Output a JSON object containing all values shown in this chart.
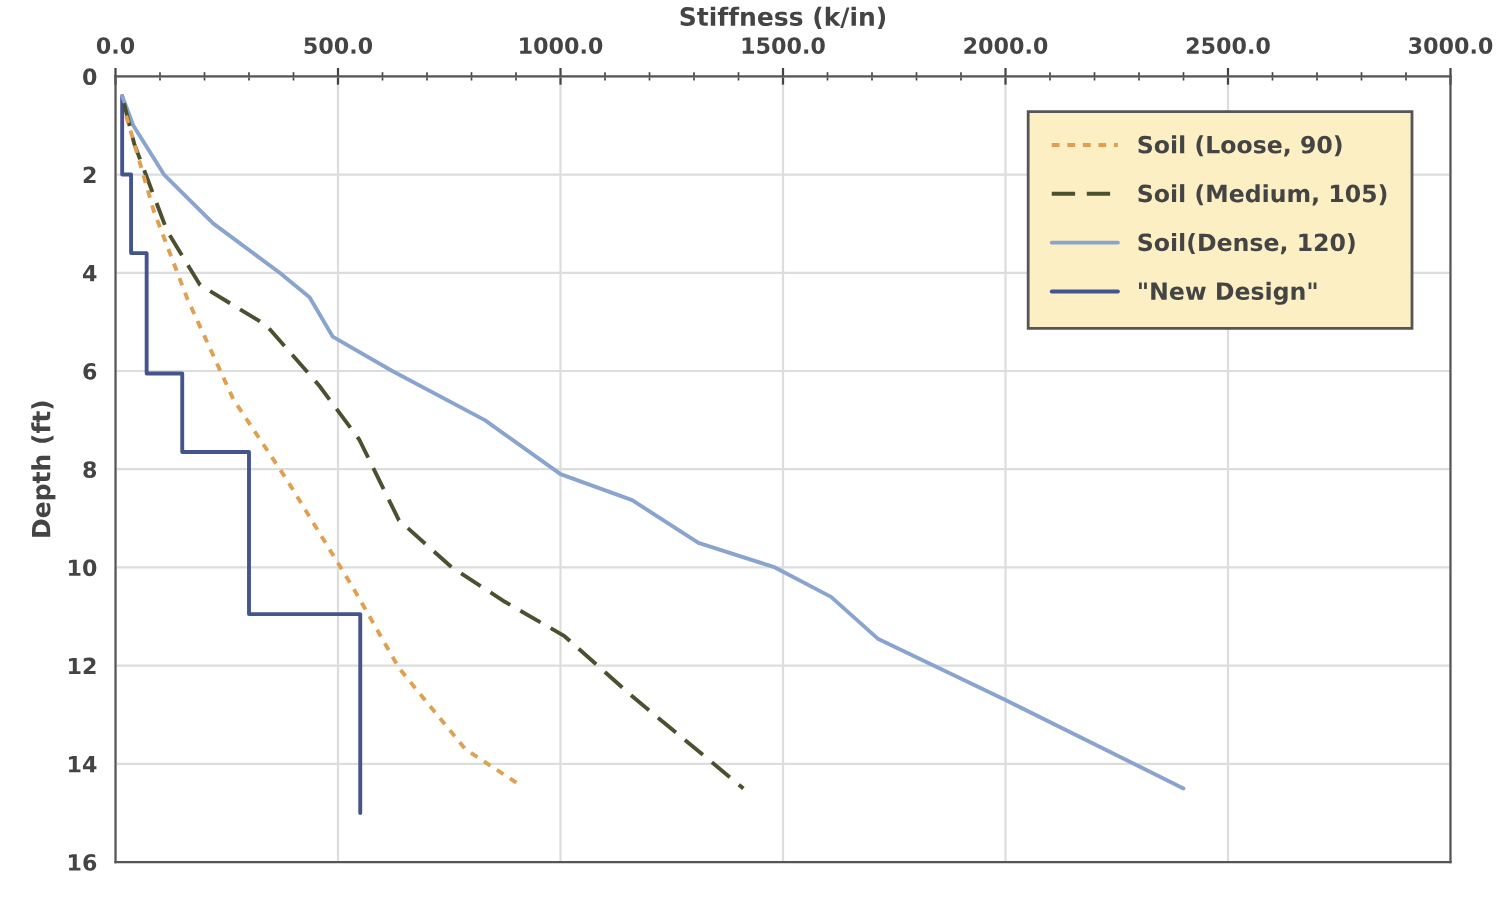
{
  "chart_data": {
    "type": "line",
    "xlabel": "Stiffness (k/in)",
    "ylabel": "Depth (ft)",
    "xlim": [
      0,
      3000
    ],
    "xticks": [
      {
        "value": 0,
        "label": "0.0"
      },
      {
        "value": 500,
        "label": "500.0"
      },
      {
        "value": 1000,
        "label": "1000.0"
      },
      {
        "value": 1500,
        "label": "1500.0"
      },
      {
        "value": 2000,
        "label": "2000.0"
      },
      {
        "value": 2500,
        "label": "2500.0"
      },
      {
        "value": 3000,
        "label": "3000.0"
      }
    ],
    "ylim": [
      16,
      0
    ],
    "yticks": [
      0,
      2,
      4,
      6,
      8,
      10,
      12,
      14,
      16
    ],
    "grid": true,
    "legend": "top right",
    "series": [
      {
        "name": "Soil (Loose, 90)",
        "color": "#e0a050",
        "line_style": "dotted",
        "x": [
          24,
          86,
          161,
          265,
          384,
          533,
          637,
          786,
          912
        ],
        "values": [
          0.8,
          2.74,
          4.52,
          6.58,
          8.2,
          10.4,
          12.05,
          13.7,
          14.45
        ]
      },
      {
        "name": "Soil (Medium, 105)",
        "color": "#4d5030",
        "line_style": "dashed",
        "x": [
          19,
          42,
          116,
          190,
          339,
          458,
          548,
          637,
          756,
          875,
          1009,
          1158,
          1411
        ],
        "values": [
          0.55,
          1.37,
          3.15,
          4.25,
          5.07,
          6.3,
          7.4,
          9.04,
          10,
          10.7,
          11.4,
          12.6,
          14.5
        ]
      },
      {
        "name": "Soil(Dense, 120)",
        "color": "#8aa4d0",
        "line_style": "solid",
        "x": [
          15,
          40,
          109,
          220,
          369,
          436,
          488,
          622,
          830,
          1000,
          1161,
          1310,
          1482,
          1608,
          1713,
          2000,
          2400
        ],
        "values": [
          0.4,
          1,
          2,
          3,
          4,
          4.5,
          5.3,
          6,
          7,
          8.1,
          8.63,
          9.5,
          10,
          10.6,
          11.45,
          12.7,
          14.5
        ]
      },
      {
        "name": "\"New Design\"",
        "color": "#44548f",
        "line_style": "solid",
        "x": [
          15,
          15,
          35,
          35,
          70,
          70,
          150,
          150,
          300,
          300,
          550,
          550
        ],
        "values": [
          0.4,
          2,
          2,
          3.6,
          3.6,
          6.05,
          6.05,
          7.65,
          7.65,
          10.95,
          10.95,
          15
        ]
      }
    ]
  }
}
